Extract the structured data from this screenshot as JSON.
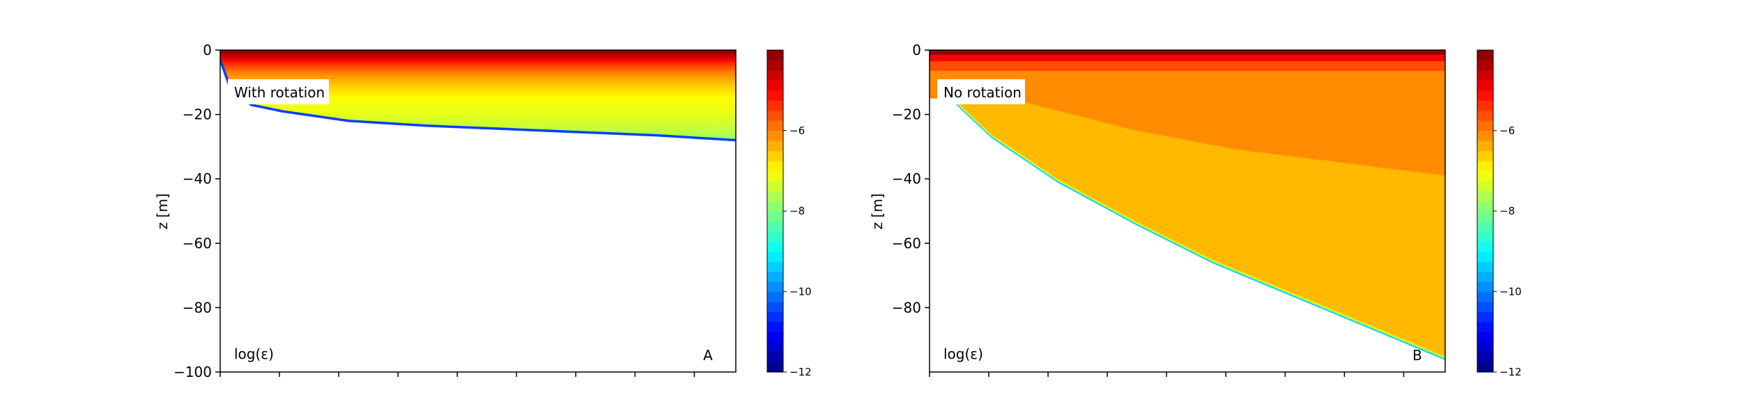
{
  "chart_data": [
    {
      "type": "heatmap",
      "panel_label": "A",
      "annotation": "With rotation",
      "variable_label": "log(ε)",
      "ylabel": "z [m]",
      "ylim": [
        -100,
        0
      ],
      "yticks": [
        {
          "value": 0,
          "label": "0"
        },
        {
          "value": -20,
          "label": "−20"
        },
        {
          "value": -40,
          "label": "−40"
        },
        {
          "value": -60,
          "label": "−60"
        },
        {
          "value": -80,
          "label": "−80"
        },
        {
          "value": -100,
          "label": "−100"
        }
      ],
      "x_tick_count": 9,
      "x_tick_labels_shown": false,
      "depth_x": [
        0.0,
        0.02,
        0.06,
        0.12,
        0.25,
        0.4,
        0.55,
        0.7,
        0.85,
        1.0
      ],
      "mixing_depth": [
        -3,
        -12,
        -17,
        -19,
        -22,
        -23.5,
        -24.5,
        -25.5,
        -26.5,
        -28
      ],
      "profile": [
        {
          "z": 0,
          "value": -4.0
        },
        {
          "z": -2,
          "value": -4.6
        },
        {
          "z": -4,
          "value": -5.3
        },
        {
          "z": -7,
          "value": -6.0
        },
        {
          "z": -11,
          "value": -6.6
        },
        {
          "z": -15,
          "value": -7.0
        },
        {
          "z": -20,
          "value": -7.2
        },
        {
          "z": -25,
          "value": -7.5
        },
        {
          "z": -28,
          "value": -7.8
        }
      ],
      "colorbar": {
        "range": [
          -12,
          -4
        ],
        "ticks": [
          {
            "value": -6,
            "label": "−6"
          },
          {
            "value": -8,
            "label": "−8"
          },
          {
            "value": -10,
            "label": "−10"
          },
          {
            "value": -12,
            "label": "−12"
          }
        ]
      }
    },
    {
      "type": "heatmap",
      "panel_label": "B",
      "annotation": "No rotation",
      "variable_label": "log(ε)",
      "ylabel": "z [m]",
      "ylim": [
        -100,
        0
      ],
      "yticks": [
        {
          "value": 0,
          "label": "0"
        },
        {
          "value": -20,
          "label": "−20"
        },
        {
          "value": -40,
          "label": "−40"
        },
        {
          "value": -60,
          "label": "−60"
        },
        {
          "value": -80,
          "label": "−80"
        }
      ],
      "x_tick_count": 9,
      "x_tick_labels_shown": false,
      "depth_x": [
        0.0,
        0.02,
        0.06,
        0.12,
        0.25,
        0.4,
        0.55,
        0.7,
        0.85,
        1.0
      ],
      "mixing_depth": [
        -2,
        -10,
        -17,
        -26,
        -40,
        -53,
        -65,
        -75,
        -85,
        -95
      ],
      "upper_layer_x": [
        0.18,
        0.4,
        0.6,
        0.8,
        1.0
      ],
      "upper_layer_z": [
        -16,
        -25,
        -31,
        -35,
        -39
      ],
      "colorbar": {
        "range": [
          -12,
          -4
        ],
        "ticks": [
          {
            "value": -6,
            "label": "−6"
          },
          {
            "value": -8,
            "label": "−8"
          },
          {
            "value": -10,
            "label": "−10"
          },
          {
            "value": -12,
            "label": "−12"
          }
        ]
      }
    }
  ]
}
